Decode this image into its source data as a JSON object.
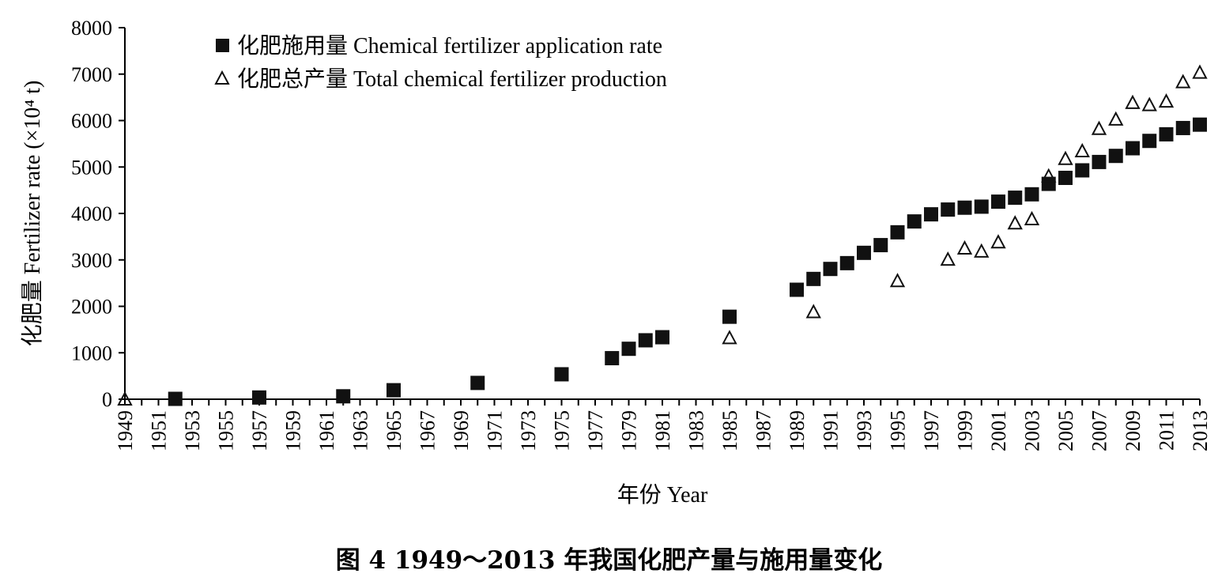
{
  "caption": "图 4   1949～2013 年我国化肥产量与施用量变化",
  "chart_data": {
    "type": "scatter",
    "xlabel": "年份 Year",
    "ylabel": "化肥量 Fertilizer rate (×10⁴ t)",
    "ylim": [
      0,
      8000
    ],
    "xlim": [
      1949,
      2013
    ],
    "yticks": [
      0,
      1000,
      2000,
      3000,
      4000,
      5000,
      6000,
      7000,
      8000
    ],
    "xticks": [
      1949,
      1951,
      1953,
      1955,
      1957,
      1959,
      1961,
      1963,
      1965,
      1967,
      1969,
      1971,
      1973,
      1975,
      1977,
      1979,
      1981,
      1983,
      1985,
      1987,
      1989,
      1991,
      1993,
      1995,
      1997,
      1999,
      2001,
      2003,
      2005,
      2007,
      2009,
      2011,
      2013
    ],
    "grid": false,
    "legend_position": "top-left",
    "series": [
      {
        "name": "化肥施用量 Chemical fertilizer application rate",
        "marker": "filled-square",
        "color": "#111111",
        "points": [
          [
            1952,
            8
          ],
          [
            1957,
            37
          ],
          [
            1962,
            63
          ],
          [
            1965,
            194
          ],
          [
            1970,
            351
          ],
          [
            1975,
            537
          ],
          [
            1978,
            884
          ],
          [
            1979,
            1086
          ],
          [
            1980,
            1269
          ],
          [
            1981,
            1335
          ],
          [
            1985,
            1776
          ],
          [
            1989,
            2357
          ],
          [
            1990,
            2590
          ],
          [
            1991,
            2805
          ],
          [
            1992,
            2930
          ],
          [
            1993,
            3152
          ],
          [
            1994,
            3318
          ],
          [
            1995,
            3594
          ],
          [
            1996,
            3828
          ],
          [
            1997,
            3981
          ],
          [
            1998,
            4084
          ],
          [
            1999,
            4124
          ],
          [
            2000,
            4146
          ],
          [
            2001,
            4254
          ],
          [
            2002,
            4339
          ],
          [
            2003,
            4412
          ],
          [
            2004,
            4637
          ],
          [
            2005,
            4766
          ],
          [
            2006,
            4928
          ],
          [
            2007,
            5108
          ],
          [
            2008,
            5239
          ],
          [
            2009,
            5404
          ],
          [
            2010,
            5562
          ],
          [
            2011,
            5704
          ],
          [
            2012,
            5839
          ],
          [
            2013,
            5912
          ]
        ]
      },
      {
        "name": "化肥总产量 Total chemical fertilizer production",
        "marker": "open-triangle",
        "color": "#111111",
        "points": [
          [
            1949,
            1
          ],
          [
            1985,
            1322
          ],
          [
            1990,
            1880
          ],
          [
            1995,
            2548
          ],
          [
            1998,
            3010
          ],
          [
            1999,
            3251
          ],
          [
            2000,
            3186
          ],
          [
            2001,
            3383
          ],
          [
            2002,
            3791
          ],
          [
            2003,
            3881
          ],
          [
            2004,
            4805
          ],
          [
            2005,
            5178
          ],
          [
            2006,
            5345
          ],
          [
            2007,
            5825
          ],
          [
            2008,
            6028
          ],
          [
            2009,
            6385
          ],
          [
            2010,
            6338
          ],
          [
            2011,
            6414
          ],
          [
            2012,
            6832
          ],
          [
            2013,
            7037
          ]
        ]
      }
    ]
  }
}
